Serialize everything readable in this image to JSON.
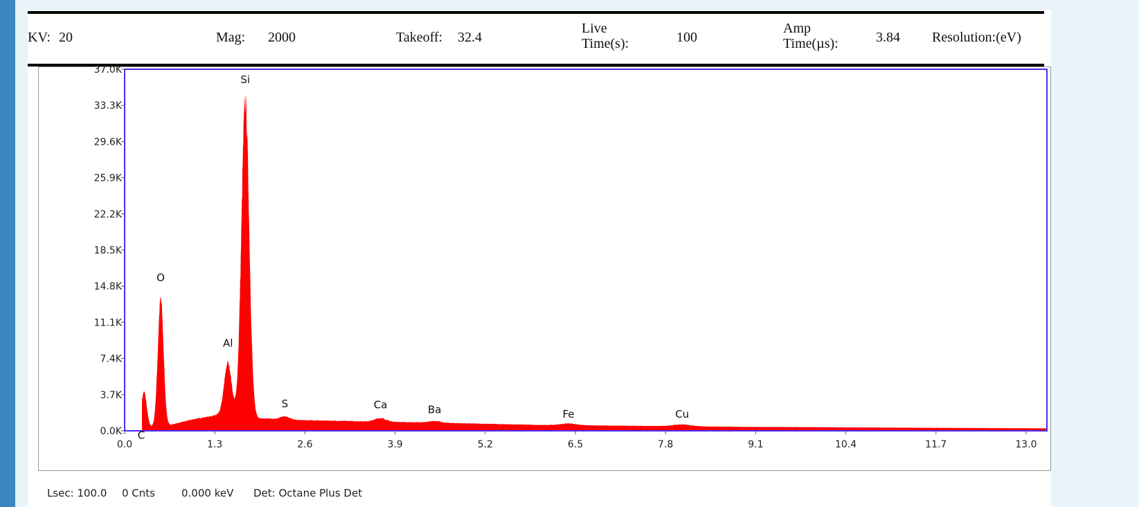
{
  "header": {
    "kv_label": "KV:",
    "kv_value": "20",
    "mag_label": "Mag:",
    "mag_value": "2000",
    "takeoff_label": "Takeoff:",
    "takeoff_value": "32.4",
    "live_time_label_1": "Live",
    "live_time_label_2": "Time(s):",
    "live_time_value": "100",
    "amp_time_label_1": "Amp",
    "amp_time_label_2": "Time(µs):",
    "amp_time_value": "3.84",
    "resolution_label": "Resolution:(eV)"
  },
  "footer": {
    "lsec": "Lsec: 100.0",
    "counts": "0 Cnts",
    "energy": "0.000 keV",
    "detector": "Det: Octane Plus Det"
  },
  "colors": {
    "spectrum": "#ff0000",
    "plot_border": "#4a2cf0",
    "sidebar": "#3a86c3"
  },
  "chart_data": {
    "type": "area",
    "title": "",
    "xlabel": "",
    "ylabel": "",
    "xlim": [
      0,
      13.3
    ],
    "ylim": [
      0,
      37000
    ],
    "x_ticks": [
      "0.0",
      "1.3",
      "2.6",
      "3.9",
      "5.2",
      "6.5",
      "7.8",
      "9.1",
      "10.4",
      "11.7",
      "13.0"
    ],
    "y_ticks": [
      "0.0K",
      "3.7K",
      "7.4K",
      "11.1K",
      "14.8K",
      "18.5K",
      "22.2K",
      "25.9K",
      "29.6K",
      "33.3K",
      "37.0K"
    ],
    "grid": false,
    "peaks": [
      {
        "element": "C",
        "energy": 0.28,
        "counts": 4000
      },
      {
        "element": "O",
        "energy": 0.52,
        "counts": 13500
      },
      {
        "element": "Al",
        "energy": 1.49,
        "counts": 7000
      },
      {
        "element": "Si",
        "energy": 1.74,
        "counts": 33800
      },
      {
        "element": "S",
        "energy": 2.31,
        "counts": 1500
      },
      {
        "element": "Ca",
        "energy": 3.69,
        "counts": 1300
      },
      {
        "element": "Ba",
        "energy": 4.47,
        "counts": 1000
      },
      {
        "element": "Fe",
        "energy": 6.4,
        "counts": 750
      },
      {
        "element": "Cu",
        "energy": 8.04,
        "counts": 650
      }
    ],
    "background": {
      "energy": [
        0.25,
        0.6,
        1.0,
        1.4,
        1.9,
        2.5,
        4.0,
        6.0,
        9.0,
        13.3
      ],
      "counts": [
        300,
        500,
        1200,
        1700,
        1300,
        1100,
        900,
        600,
        400,
        250
      ]
    }
  }
}
